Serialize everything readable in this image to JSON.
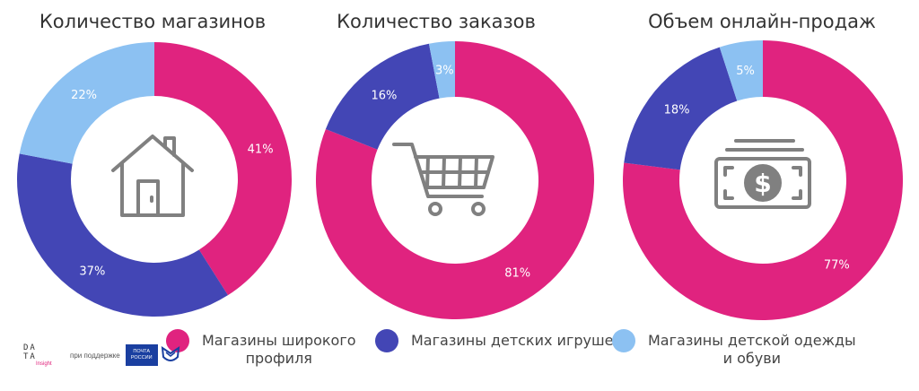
{
  "colors": {
    "pink": "#e0237f",
    "blue": "#4346b5",
    "light_blue": "#8cc1f2",
    "icon_gray": "#808080"
  },
  "chart_data": [
    {
      "type": "pie",
      "title": "Количество магазинов",
      "icon": "house-icon",
      "slices": [
        {
          "category": "Магазины широкого профиля",
          "value": 41,
          "label": "41%",
          "color": "#e0237f"
        },
        {
          "category": "Магазины детских игрушек",
          "value": 37,
          "label": "37%",
          "color": "#4346b5"
        },
        {
          "category": "Магазины детской одежды и обуви",
          "value": 22,
          "label": "22%",
          "color": "#8cc1f2"
        }
      ]
    },
    {
      "type": "pie",
      "title": "Количество заказов",
      "icon": "shopping-cart-icon",
      "slices": [
        {
          "category": "Магазины широкого профиля",
          "value": 81,
          "label": "81%",
          "color": "#e0237f"
        },
        {
          "category": "Магазины детских игрушек",
          "value": 16,
          "label": "16%",
          "color": "#4346b5"
        },
        {
          "category": "Магазины детской одежды и обуви",
          "value": 3,
          "label": "3%",
          "color": "#8cc1f2"
        }
      ]
    },
    {
      "type": "pie",
      "title": "Объем онлайн-продаж",
      "icon": "money-bill-icon",
      "slices": [
        {
          "category": "Магазины широкого профиля",
          "value": 77,
          "label": "77%",
          "color": "#e0237f"
        },
        {
          "category": "Магазины детских игрушек",
          "value": 18,
          "label": "18%",
          "color": "#4346b5"
        },
        {
          "category": "Магазины детской одежды и обуви",
          "value": 5,
          "label": "5%",
          "color": "#8cc1f2"
        }
      ]
    }
  ],
  "legend": [
    {
      "line1": "Магазины широкого",
      "line2": "профиля",
      "color": "#e0237f"
    },
    {
      "line1": "Магазины детских игрушек",
      "line2": "",
      "color": "#4346b5"
    },
    {
      "line1": "Магазины детской одежды",
      "line2": "и обуви",
      "color": "#8cc1f2"
    }
  ],
  "footer": {
    "brand_line1": "DA",
    "brand_line2": "TA",
    "brand_line3": "Insight",
    "support_text": "при поддержке",
    "post_line1": "ПОЧТА",
    "post_line2": "РОССИИ"
  }
}
